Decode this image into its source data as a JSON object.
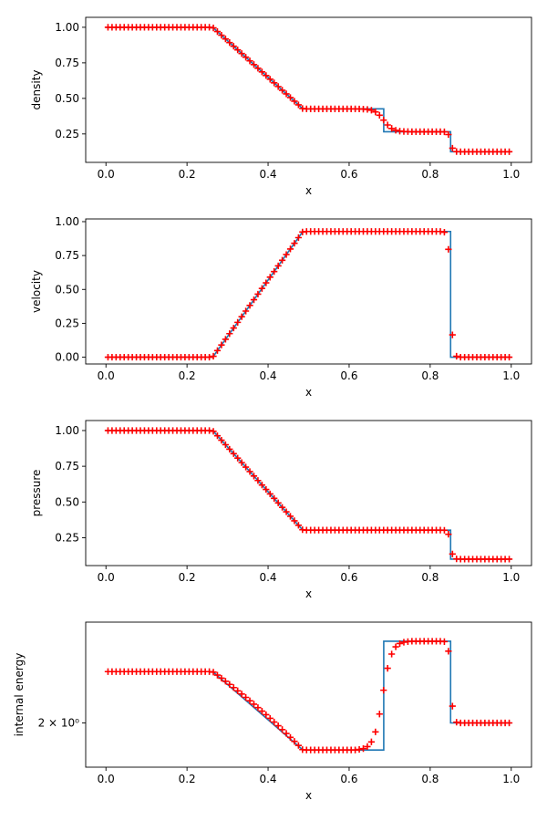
{
  "chart_data": [
    {
      "type": "line",
      "xlabel": "x",
      "ylabel": "density",
      "xlim": [
        -0.05,
        1.05
      ],
      "ylim": [
        0.05,
        1.07
      ],
      "xticks": [
        0.0,
        0.2,
        0.4,
        0.6,
        0.8,
        1.0
      ],
      "xtick_labels": [
        "0.0",
        "0.2",
        "0.4",
        "0.6",
        "0.8",
        "1.0"
      ],
      "yticks": [
        0.25,
        0.5,
        0.75,
        1.0
      ],
      "ytick_labels": [
        "0.25",
        "0.50",
        "0.75",
        "1.00"
      ],
      "grid": false,
      "series": [
        {
          "style": "line",
          "color": "#1f77b4",
          "points": [
            [
              0.0,
              1.0
            ],
            [
              0.2633,
              1.0
            ],
            [
              0.4859,
              0.4263
            ],
            [
              0.6854,
              0.4263
            ],
            [
              0.6854,
              0.2656
            ],
            [
              0.8504,
              0.2656
            ],
            [
              0.8504,
              0.125
            ],
            [
              1.0,
              0.125
            ]
          ]
        },
        {
          "style": "marker",
          "marker": "+",
          "color": "#ff0000",
          "points_from_profile": true
        }
      ]
    },
    {
      "type": "line",
      "xlabel": "x",
      "ylabel": "velocity",
      "xlim": [
        -0.05,
        1.05
      ],
      "ylim": [
        -0.05,
        1.02
      ],
      "xticks": [
        0.0,
        0.2,
        0.4,
        0.6,
        0.8,
        1.0
      ],
      "xtick_labels": [
        "0.0",
        "0.2",
        "0.4",
        "0.6",
        "0.8",
        "1.0"
      ],
      "yticks": [
        0.0,
        0.25,
        0.5,
        0.75,
        1.0
      ],
      "ytick_labels": [
        "0.00",
        "0.25",
        "0.50",
        "0.75",
        "1.00"
      ],
      "grid": false,
      "series": [
        {
          "style": "line",
          "color": "#1f77b4",
          "points": [
            [
              0.0,
              0.0
            ],
            [
              0.2633,
              0.0
            ],
            [
              0.4859,
              0.9274
            ],
            [
              0.8504,
              0.9274
            ],
            [
              0.8504,
              0.0
            ],
            [
              1.0,
              0.0
            ]
          ]
        },
        {
          "style": "marker",
          "marker": "+",
          "color": "#ff0000",
          "points_from_profile": true
        }
      ]
    },
    {
      "type": "line",
      "xlabel": "x",
      "ylabel": "pressure",
      "xlim": [
        -0.05,
        1.05
      ],
      "ylim": [
        0.055,
        1.07
      ],
      "xticks": [
        0.0,
        0.2,
        0.4,
        0.6,
        0.8,
        1.0
      ],
      "xtick_labels": [
        "0.0",
        "0.2",
        "0.4",
        "0.6",
        "0.8",
        "1.0"
      ],
      "yticks": [
        0.25,
        0.5,
        0.75,
        1.0
      ],
      "ytick_labels": [
        "0.25",
        "0.50",
        "0.75",
        "1.00"
      ],
      "grid": false,
      "series": [
        {
          "style": "line",
          "color": "#1f77b4",
          "points": [
            [
              0.0,
              1.0
            ],
            [
              0.2633,
              1.0
            ],
            [
              0.4859,
              0.3031
            ],
            [
              0.8504,
              0.3031
            ],
            [
              0.8504,
              0.1
            ],
            [
              1.0,
              0.1
            ]
          ]
        },
        {
          "style": "marker",
          "marker": "+",
          "color": "#ff0000",
          "points_from_profile": true
        }
      ]
    },
    {
      "type": "line",
      "xlabel": "x",
      "ylabel": "internal energy",
      "yscale": "log",
      "xlim": [
        -0.05,
        1.05
      ],
      "ylim": [
        1.65,
        3.1
      ],
      "xticks": [
        0.0,
        0.2,
        0.4,
        0.6,
        0.8,
        1.0
      ],
      "xtick_labels": [
        "0.0",
        "0.2",
        "0.4",
        "0.6",
        "0.8",
        "1.0"
      ],
      "yticks": [
        2.0
      ],
      "ytick_labels": [
        "2 × 10⁰"
      ],
      "grid": false,
      "series": [
        {
          "style": "line",
          "color": "#1f77b4",
          "points": [
            [
              0.0,
              2.5
            ],
            [
              0.2633,
              2.5
            ],
            [
              0.4859,
              1.778
            ],
            [
              0.6854,
              1.778
            ],
            [
              0.6854,
              2.853
            ],
            [
              0.8504,
              2.853
            ],
            [
              0.8504,
              2.0
            ],
            [
              1.0,
              2.0
            ]
          ]
        },
        {
          "style": "marker",
          "marker": "+",
          "color": "#ff0000",
          "points_from_profile": true
        }
      ]
    }
  ]
}
